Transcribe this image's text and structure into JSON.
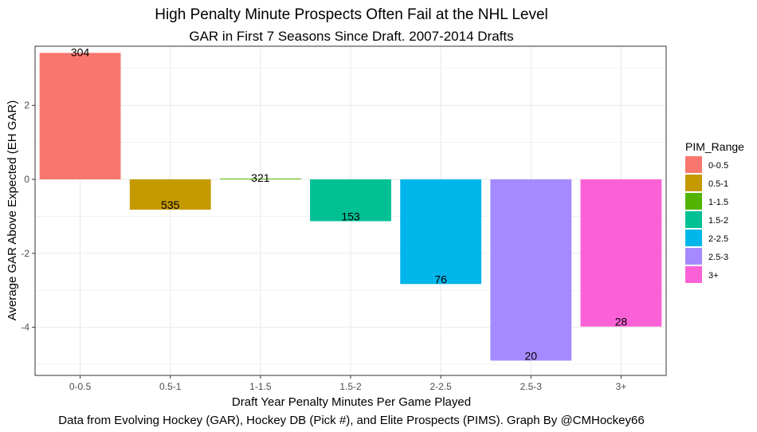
{
  "chart_data": {
    "type": "bar",
    "title": "High Penalty Minute Prospects Often Fail at the NHL Level",
    "subtitle": "GAR in First 7 Seasons Since Draft. 2007-2014 Drafts",
    "xlabel": "Draft Year Penalty Minutes Per Game Played",
    "ylabel": "Average GAR Above Expected (EH GAR)",
    "caption": "Data from Evolving Hockey (GAR), Hockey DB (Pick #), and Elite Prospects (PIMS). Graph By @CMHockey66",
    "categories": [
      "0-0.5",
      "0.5-1",
      "1-1.5",
      "1.5-2",
      "2-2.5",
      "2.5-3",
      "3+"
    ],
    "values": [
      3.42,
      -0.82,
      0.02,
      -1.13,
      -2.83,
      -4.9,
      -3.98
    ],
    "bar_labels": [
      "304",
      "535",
      "321",
      "153",
      "76",
      "20",
      "28"
    ],
    "colors": [
      "#F8766D",
      "#C49A00",
      "#53B400",
      "#00C094",
      "#00B6EB",
      "#A58AFF",
      "#FB61D7"
    ],
    "ylim": [
      -5.3,
      3.6
    ],
    "yticks": [
      -4,
      -2,
      0,
      2
    ],
    "ytick_labels": [
      "-4",
      "-2",
      "0",
      "2"
    ],
    "grid": true,
    "legend": {
      "title": "PIM_Range",
      "position": "right",
      "entries": [
        "0-0.5",
        "0.5-1",
        "1-1.5",
        "1.5-2",
        "2-2.5",
        "2.5-3",
        "3+"
      ]
    }
  }
}
